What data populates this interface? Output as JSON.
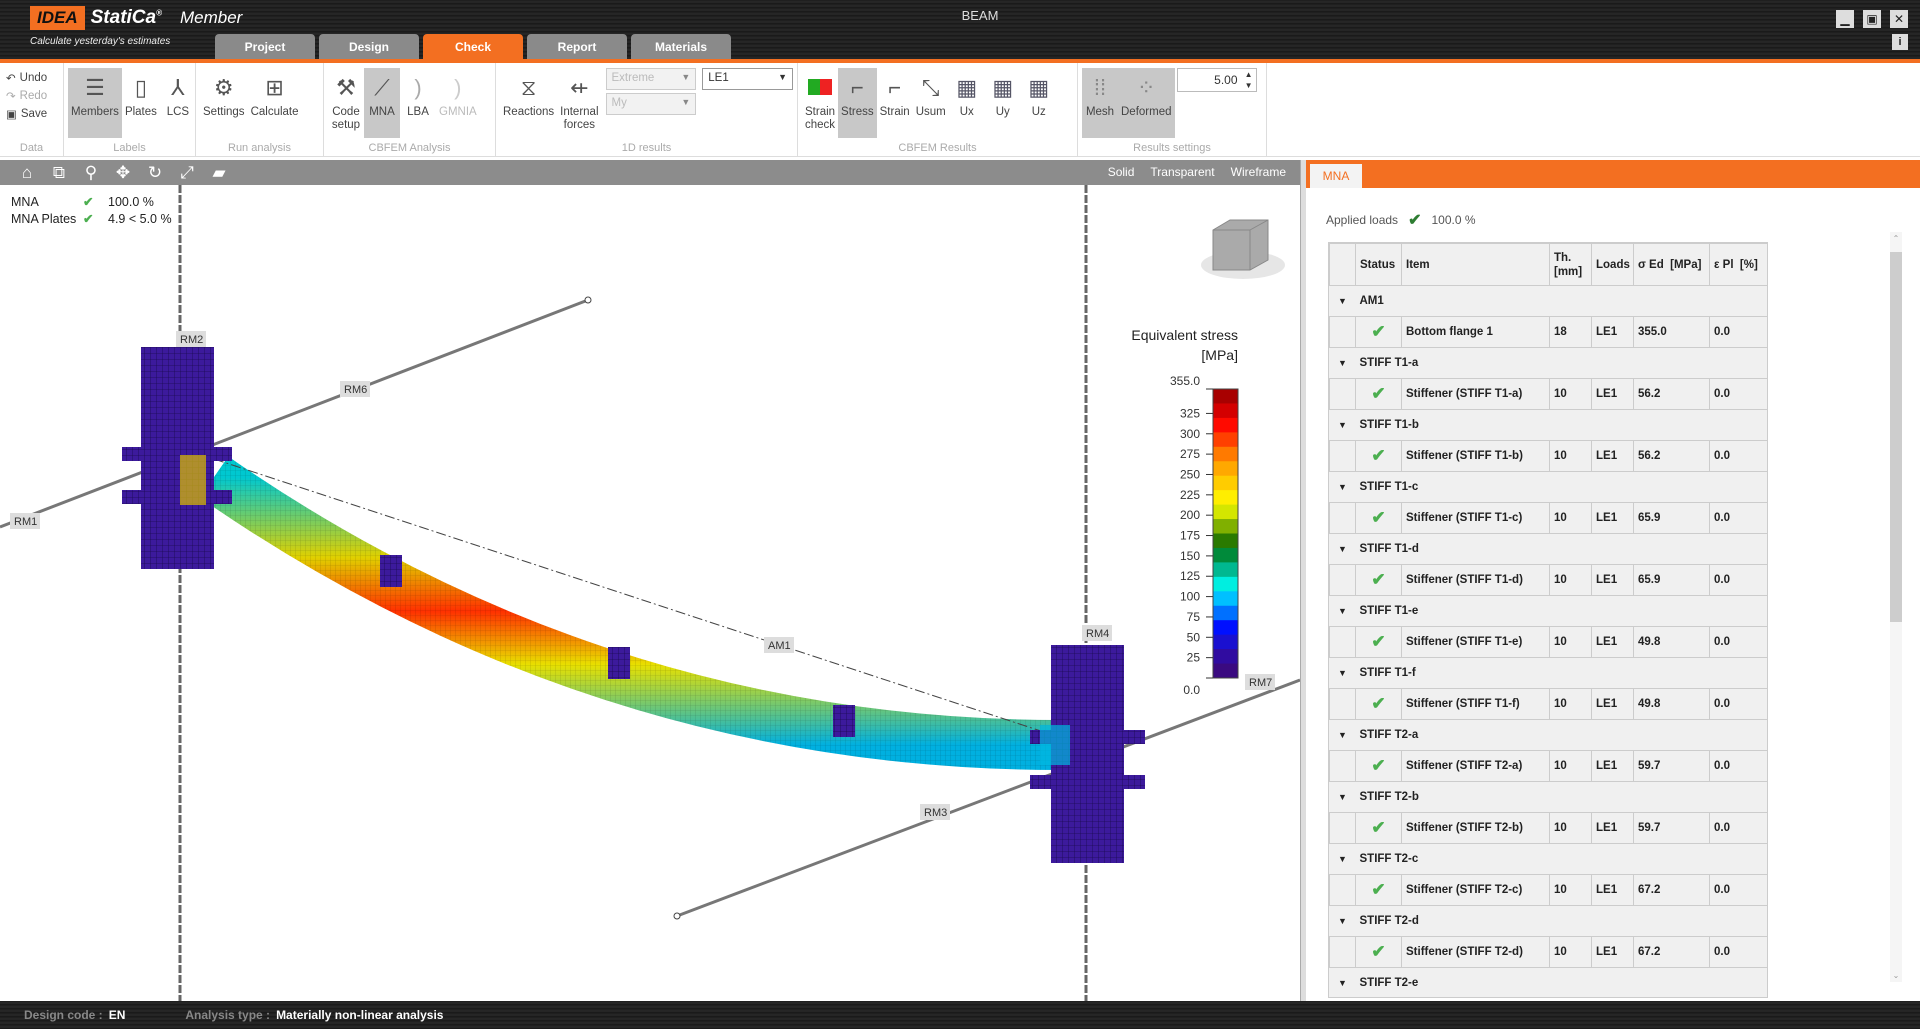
{
  "app": {
    "brand": "IDEA StatiCa",
    "product": "Member",
    "slogan": "Calculate yesterday's estimates",
    "title": "BEAM",
    "accent": "#f36f21"
  },
  "tabs": [
    {
      "label": "Project"
    },
    {
      "label": "Design"
    },
    {
      "label": "Check",
      "active": true
    },
    {
      "label": "Report"
    },
    {
      "label": "Materials"
    }
  ],
  "window": {
    "minimize": "▁",
    "maximize": "▣",
    "close": "✕",
    "info": "i"
  },
  "ribbon": {
    "data": {
      "label": "Data",
      "undo": "Undo",
      "redo": "Redo",
      "save": "Save"
    },
    "labels": {
      "label": "Labels",
      "members": "Members",
      "plates": "Plates",
      "lcs": "LCS"
    },
    "run": {
      "label": "Run analysis",
      "settings": "Settings",
      "calculate": "Calculate"
    },
    "cbfem": {
      "label": "CBFEM Analysis",
      "code_setup": "Code\nsetup",
      "mna": "MNA",
      "lba": "LBA",
      "gmnia": "GMNIA"
    },
    "results1d": {
      "label": "1D results",
      "reactions": "Reactions",
      "internal_forces": "Internal\nforces",
      "extreme": "Extreme",
      "my": "My",
      "le": "LE1"
    },
    "cbfem_results": {
      "label": "CBFEM Results",
      "strain_check": "Strain\ncheck",
      "stress": "Stress",
      "strain": "Strain",
      "usum": "Usum",
      "ux": "Ux",
      "uy": "Uy",
      "uz": "Uz"
    },
    "settings": {
      "label": "Results settings",
      "mesh": "Mesh",
      "deformed": "Deformed",
      "scale": "5.00"
    }
  },
  "viewtools": {
    "icons": [
      "home-icon",
      "zoom-window-icon",
      "zoom-icon",
      "pan-icon",
      "rotate-icon",
      "fit-icon",
      "solid-box-icon"
    ],
    "modes": {
      "solid": "Solid",
      "transparent": "Transparent",
      "wireframe": "Wireframe"
    }
  },
  "viewport": {
    "summary": [
      {
        "name": "MNA",
        "value": "100.0 %"
      },
      {
        "name": "MNA Plates",
        "value": "4.9 < 5.0 %"
      }
    ],
    "labels": {
      "rm1": "RM1",
      "rm2": "RM2",
      "rm3": "RM3",
      "rm4": "RM4",
      "rm6": "RM6",
      "rm7": "RM7",
      "am1": "AM1"
    },
    "legend": {
      "title": "Equivalent stress",
      "unit": "[MPa]",
      "ticks": [
        "355.0",
        "325",
        "300",
        "275",
        "250",
        "225",
        "200",
        "175",
        "150",
        "125",
        "100",
        "75",
        "50",
        "25",
        "0.0"
      ],
      "colors": [
        "#a80000",
        "#d40000",
        "#ff0a00",
        "#ff4000",
        "#ff7a00",
        "#ffa800",
        "#ffcc00",
        "#ffee00",
        "#d4e600",
        "#80b000",
        "#2a7a00",
        "#008a3a",
        "#00b890",
        "#00eee0",
        "#00c0ff",
        "#0070ff",
        "#0010ff",
        "#1a10d0",
        "#300ca0",
        "#3a0a80"
      ]
    }
  },
  "panel": {
    "tab": "MNA",
    "applied_label": "Applied loads",
    "applied_value": "100.0 %",
    "columns": [
      "",
      "Status",
      "Item",
      "Th.\n[mm]",
      "Loads",
      "σ Ed  [MPa]",
      "ε Pl  [%]"
    ],
    "groups": [
      {
        "name": "AM1",
        "item": "Bottom flange 1",
        "th": "18",
        "loads": "LE1",
        "sigma": "355.0",
        "eps": "0.0"
      },
      {
        "name": "STIFF T1-a",
        "item": "Stiffener (STIFF T1-a)",
        "th": "10",
        "loads": "LE1",
        "sigma": "56.2",
        "eps": "0.0"
      },
      {
        "name": "STIFF T1-b",
        "item": "Stiffener (STIFF T1-b)",
        "th": "10",
        "loads": "LE1",
        "sigma": "56.2",
        "eps": "0.0"
      },
      {
        "name": "STIFF T1-c",
        "item": "Stiffener (STIFF T1-c)",
        "th": "10",
        "loads": "LE1",
        "sigma": "65.9",
        "eps": "0.0"
      },
      {
        "name": "STIFF T1-d",
        "item": "Stiffener (STIFF T1-d)",
        "th": "10",
        "loads": "LE1",
        "sigma": "65.9",
        "eps": "0.0"
      },
      {
        "name": "STIFF T1-e",
        "item": "Stiffener (STIFF T1-e)",
        "th": "10",
        "loads": "LE1",
        "sigma": "49.8",
        "eps": "0.0"
      },
      {
        "name": "STIFF T1-f",
        "item": "Stiffener (STIFF T1-f)",
        "th": "10",
        "loads": "LE1",
        "sigma": "49.8",
        "eps": "0.0"
      },
      {
        "name": "STIFF T2-a",
        "item": "Stiffener (STIFF T2-a)",
        "th": "10",
        "loads": "LE1",
        "sigma": "59.7",
        "eps": "0.0"
      },
      {
        "name": "STIFF T2-b",
        "item": "Stiffener (STIFF T2-b)",
        "th": "10",
        "loads": "LE1",
        "sigma": "59.7",
        "eps": "0.0"
      },
      {
        "name": "STIFF T2-c",
        "item": "Stiffener (STIFF T2-c)",
        "th": "10",
        "loads": "LE1",
        "sigma": "67.2",
        "eps": "0.0"
      },
      {
        "name": "STIFF T2-d",
        "item": "Stiffener (STIFF T2-d)",
        "th": "10",
        "loads": "LE1",
        "sigma": "67.2",
        "eps": "0.0"
      },
      {
        "name": "STIFF T2-e"
      }
    ]
  },
  "status": {
    "design_code_label": "Design code :",
    "design_code": "EN",
    "analysis_label": "Analysis type :",
    "analysis": "Materially non-linear analysis"
  }
}
